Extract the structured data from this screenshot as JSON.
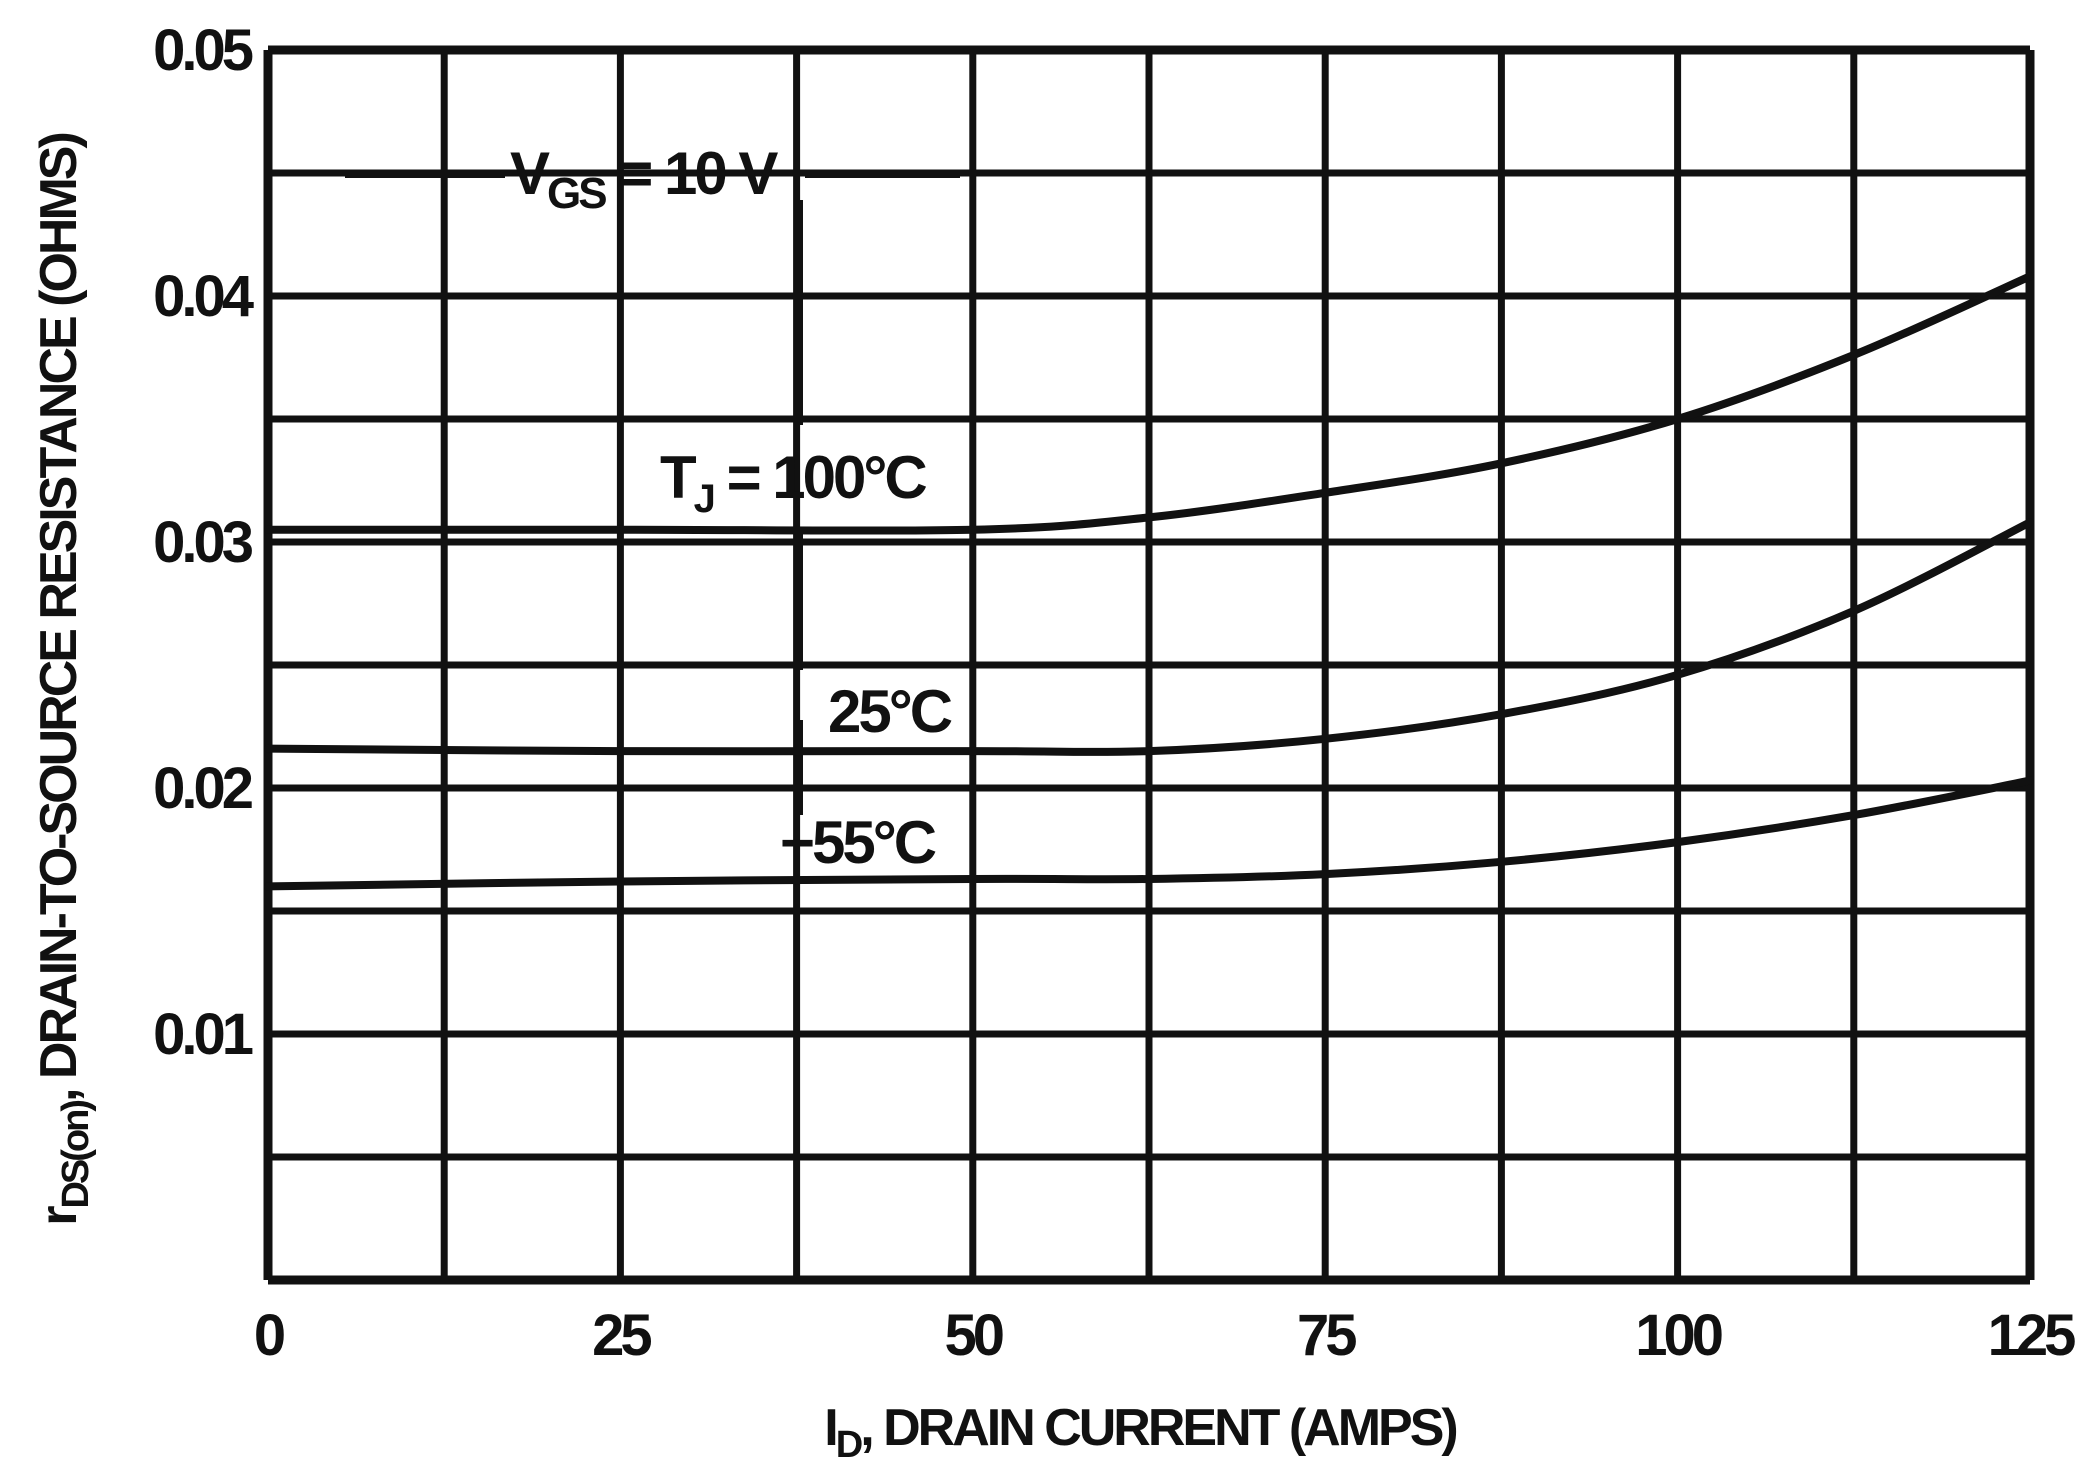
{
  "chart_data": {
    "type": "line",
    "title": "",
    "xlabel": {
      "pre": "I",
      "sub": "D",
      "post": ", DRAIN CURRENT (AMPS)"
    },
    "ylabel": {
      "pre": "r",
      "sub": "DS(on)",
      "post": ", DRAIN-TO-SOURCE RESISTANCE (OHMS)"
    },
    "xlim": [
      0,
      125
    ],
    "ylim": [
      0,
      0.05
    ],
    "x_ticks": [
      0,
      25,
      50,
      75,
      100,
      125
    ],
    "x_tick_labels": [
      "0",
      "25",
      "50",
      "75",
      "100",
      "125"
    ],
    "y_ticks": [
      0.01,
      0.02,
      0.03,
      0.04,
      0.05
    ],
    "y_tick_labels": [
      "0.01",
      "0.02",
      "0.03",
      "0.04",
      "0.05"
    ],
    "grid": true,
    "grid_x_step": 12.5,
    "grid_y_step": 0.005,
    "condition": {
      "pre": "V",
      "sub": "GS",
      "post": " = 10 V"
    },
    "series_label_prefix": {
      "pre": "T",
      "sub": "J",
      "post": " = "
    },
    "series": [
      {
        "name": "100°C",
        "x": [
          0,
          25,
          50,
          62.5,
          75,
          87.5,
          100,
          112.5,
          125
        ],
        "y": [
          0.0305,
          0.0305,
          0.0305,
          0.031,
          0.032,
          0.0332,
          0.035,
          0.0376,
          0.0408
        ]
      },
      {
        "name": "25°C",
        "x": [
          0,
          25,
          50,
          62.5,
          75,
          87.5,
          100,
          112.5,
          125
        ],
        "y": [
          0.0216,
          0.0215,
          0.0215,
          0.0215,
          0.022,
          0.023,
          0.0246,
          0.0272,
          0.0308
        ]
      },
      {
        "name": "−55°C",
        "x": [
          0,
          25,
          50,
          62.5,
          75,
          87.5,
          100,
          112.5,
          125
        ],
        "y": [
          0.016,
          0.0162,
          0.0163,
          0.0163,
          0.0165,
          0.017,
          0.0178,
          0.0189,
          0.0203
        ]
      }
    ],
    "colors": {
      "line": "#111111",
      "grid": "#111111",
      "background": "#ffffff"
    }
  }
}
